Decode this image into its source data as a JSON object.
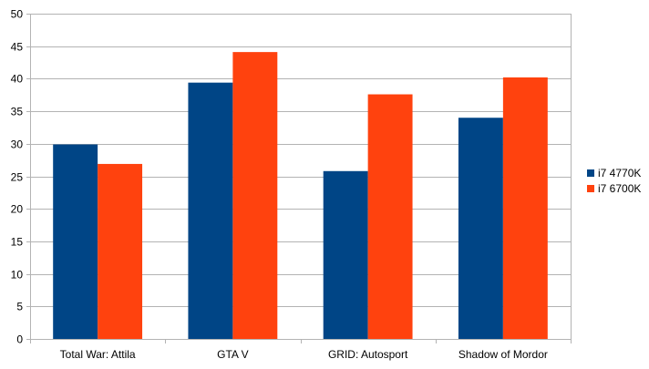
{
  "chart_data": {
    "type": "bar",
    "title": "",
    "xlabel": "",
    "ylabel": "",
    "categories": [
      "Total War: Attila",
      "GTA V",
      "GRID: Autosport",
      "Shadow of Mordor"
    ],
    "series": [
      {
        "name": "i7 4770K",
        "color": "#004586",
        "values": [
          29.9,
          39.4,
          25.8,
          34.0
        ]
      },
      {
        "name": "i7 6700K",
        "color": "#ff420e",
        "values": [
          26.9,
          44.1,
          37.6,
          40.2
        ]
      }
    ],
    "ylim": [
      0,
      50
    ],
    "yticks": [
      "0",
      "5",
      "10",
      "15",
      "20",
      "25",
      "30",
      "35",
      "40",
      "45",
      "50"
    ],
    "grid": true,
    "legend_position": "right"
  }
}
